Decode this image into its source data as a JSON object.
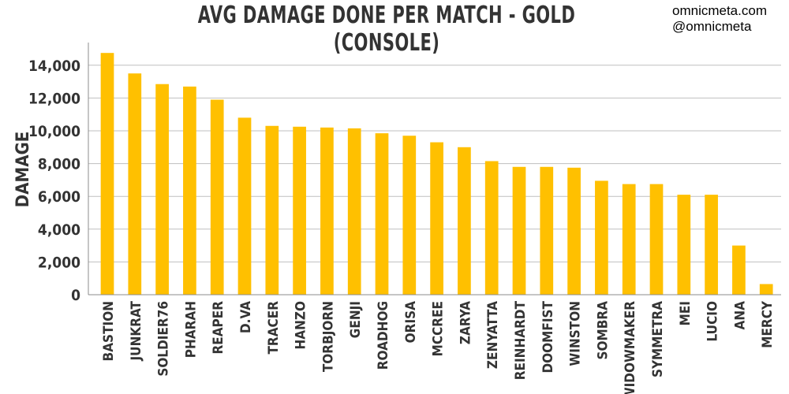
{
  "header": {
    "title": "AVG DAMAGE DONE PER MATCH - GOLD (CONSOLE)",
    "credit_line1": "omnicmeta.com",
    "credit_line2": "@omnicmeta"
  },
  "colors": {
    "bar": "#FFC000",
    "grid": "#BFBFBF",
    "axis": "#8C8C8C",
    "text": "#333333"
  },
  "chart_data": {
    "type": "bar",
    "title": "AVG DAMAGE DONE PER MATCH - GOLD (CONSOLE)",
    "xlabel": "",
    "ylabel": "DAMAGE",
    "ylim": [
      0,
      15000
    ],
    "yticks": [
      0,
      2000,
      4000,
      6000,
      8000,
      10000,
      12000,
      14000
    ],
    "ytick_labels": [
      "0",
      "2,000",
      "4,000",
      "6,000",
      "8,000",
      "10,000",
      "12,000",
      "14,000"
    ],
    "grid": true,
    "legend": "none",
    "categories": [
      "BASTION",
      "JUNKRAT",
      "SOLDIER76",
      "PHARAH",
      "REAPER",
      "D.VA",
      "TRACER",
      "HANZO",
      "TORBJORN",
      "GENJI",
      "ROADHOG",
      "ORISA",
      "MCCREE",
      "ZARYA",
      "ZENYATTA",
      "REINHARDT",
      "DOOMFIST",
      "WINSTON",
      "SOMBRA",
      "WIDOWMAKER",
      "SYMMETRA",
      "MEI",
      "LUCIO",
      "ANA",
      "MERCY"
    ],
    "values": [
      14750,
      13500,
      12850,
      12700,
      11900,
      10800,
      10300,
      10250,
      10200,
      10150,
      9850,
      9700,
      9300,
      9000,
      8150,
      7800,
      7800,
      7750,
      6950,
      6750,
      6750,
      6100,
      6100,
      3000,
      650
    ]
  }
}
